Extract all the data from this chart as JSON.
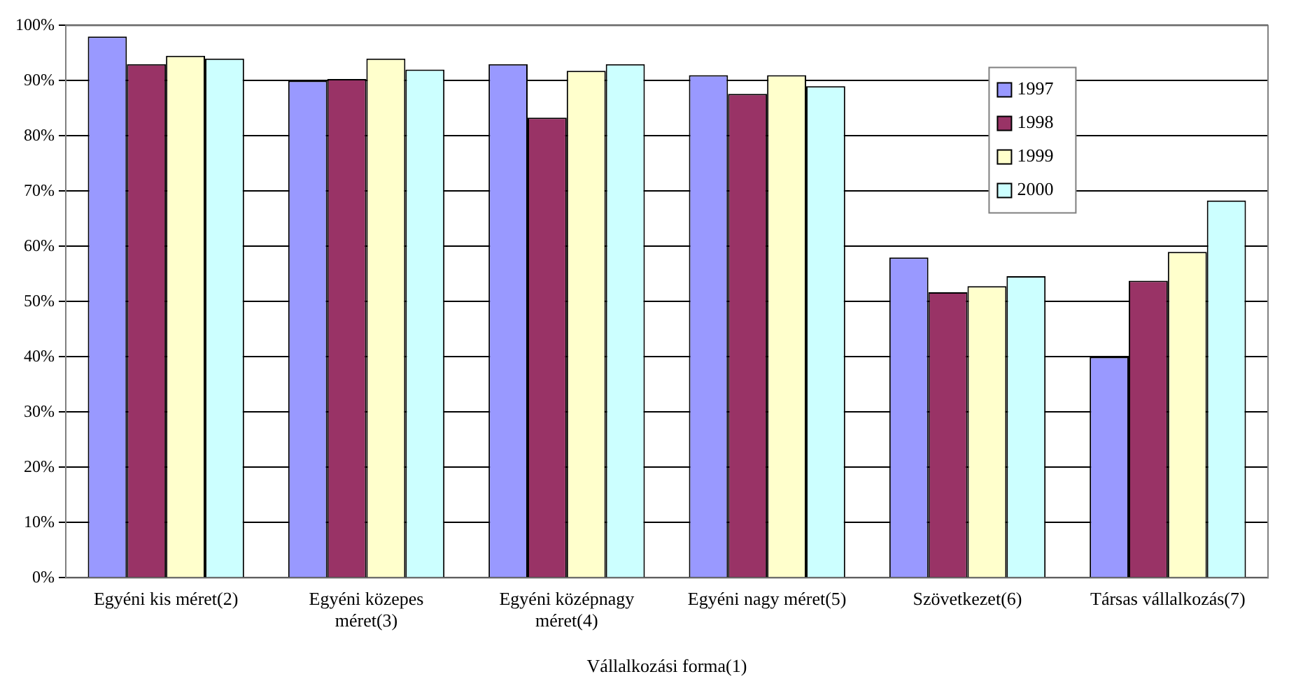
{
  "chart_data": {
    "type": "bar",
    "xlabel": "Vállalkozási forma(1)",
    "categories": [
      "Egyéni kis méret(2)",
      "Egyéni közepes méret(3)",
      "Egyéni középnagy méret(4)",
      "Egyéni nagy méret(5)",
      "Szövetkezet(6)",
      "Társas vállalkozás(7)"
    ],
    "series": [
      {
        "name": "1997",
        "color": "#9999ff",
        "values": [
          98,
          90,
          93,
          91,
          58,
          40
        ]
      },
      {
        "name": "1998",
        "color": "#993366",
        "values": [
          93,
          90.3,
          83.3,
          87.6,
          51.7,
          53.8
        ]
      },
      {
        "name": "1999",
        "color": "#ffffcc",
        "values": [
          94.5,
          94,
          91.8,
          91,
          52.8,
          59
        ]
      },
      {
        "name": "2000",
        "color": "#ccffff",
        "values": [
          94,
          92,
          93,
          89,
          54.6,
          68.3
        ]
      }
    ],
    "ylim": [
      0,
      100
    ],
    "yticks": [
      {
        "value": 0,
        "label": "0%"
      },
      {
        "value": 10,
        "label": "10%"
      },
      {
        "value": 20,
        "label": "20%"
      },
      {
        "value": 30,
        "label": "30%"
      },
      {
        "value": 40,
        "label": "40%"
      },
      {
        "value": 50,
        "label": "50%"
      },
      {
        "value": 60,
        "label": "60%"
      },
      {
        "value": 70,
        "label": "70%"
      },
      {
        "value": 80,
        "label": "80%"
      },
      {
        "value": 90,
        "label": "90%"
      },
      {
        "value": 100,
        "label": "100%"
      }
    ],
    "grid": "y",
    "legend": "top right"
  }
}
